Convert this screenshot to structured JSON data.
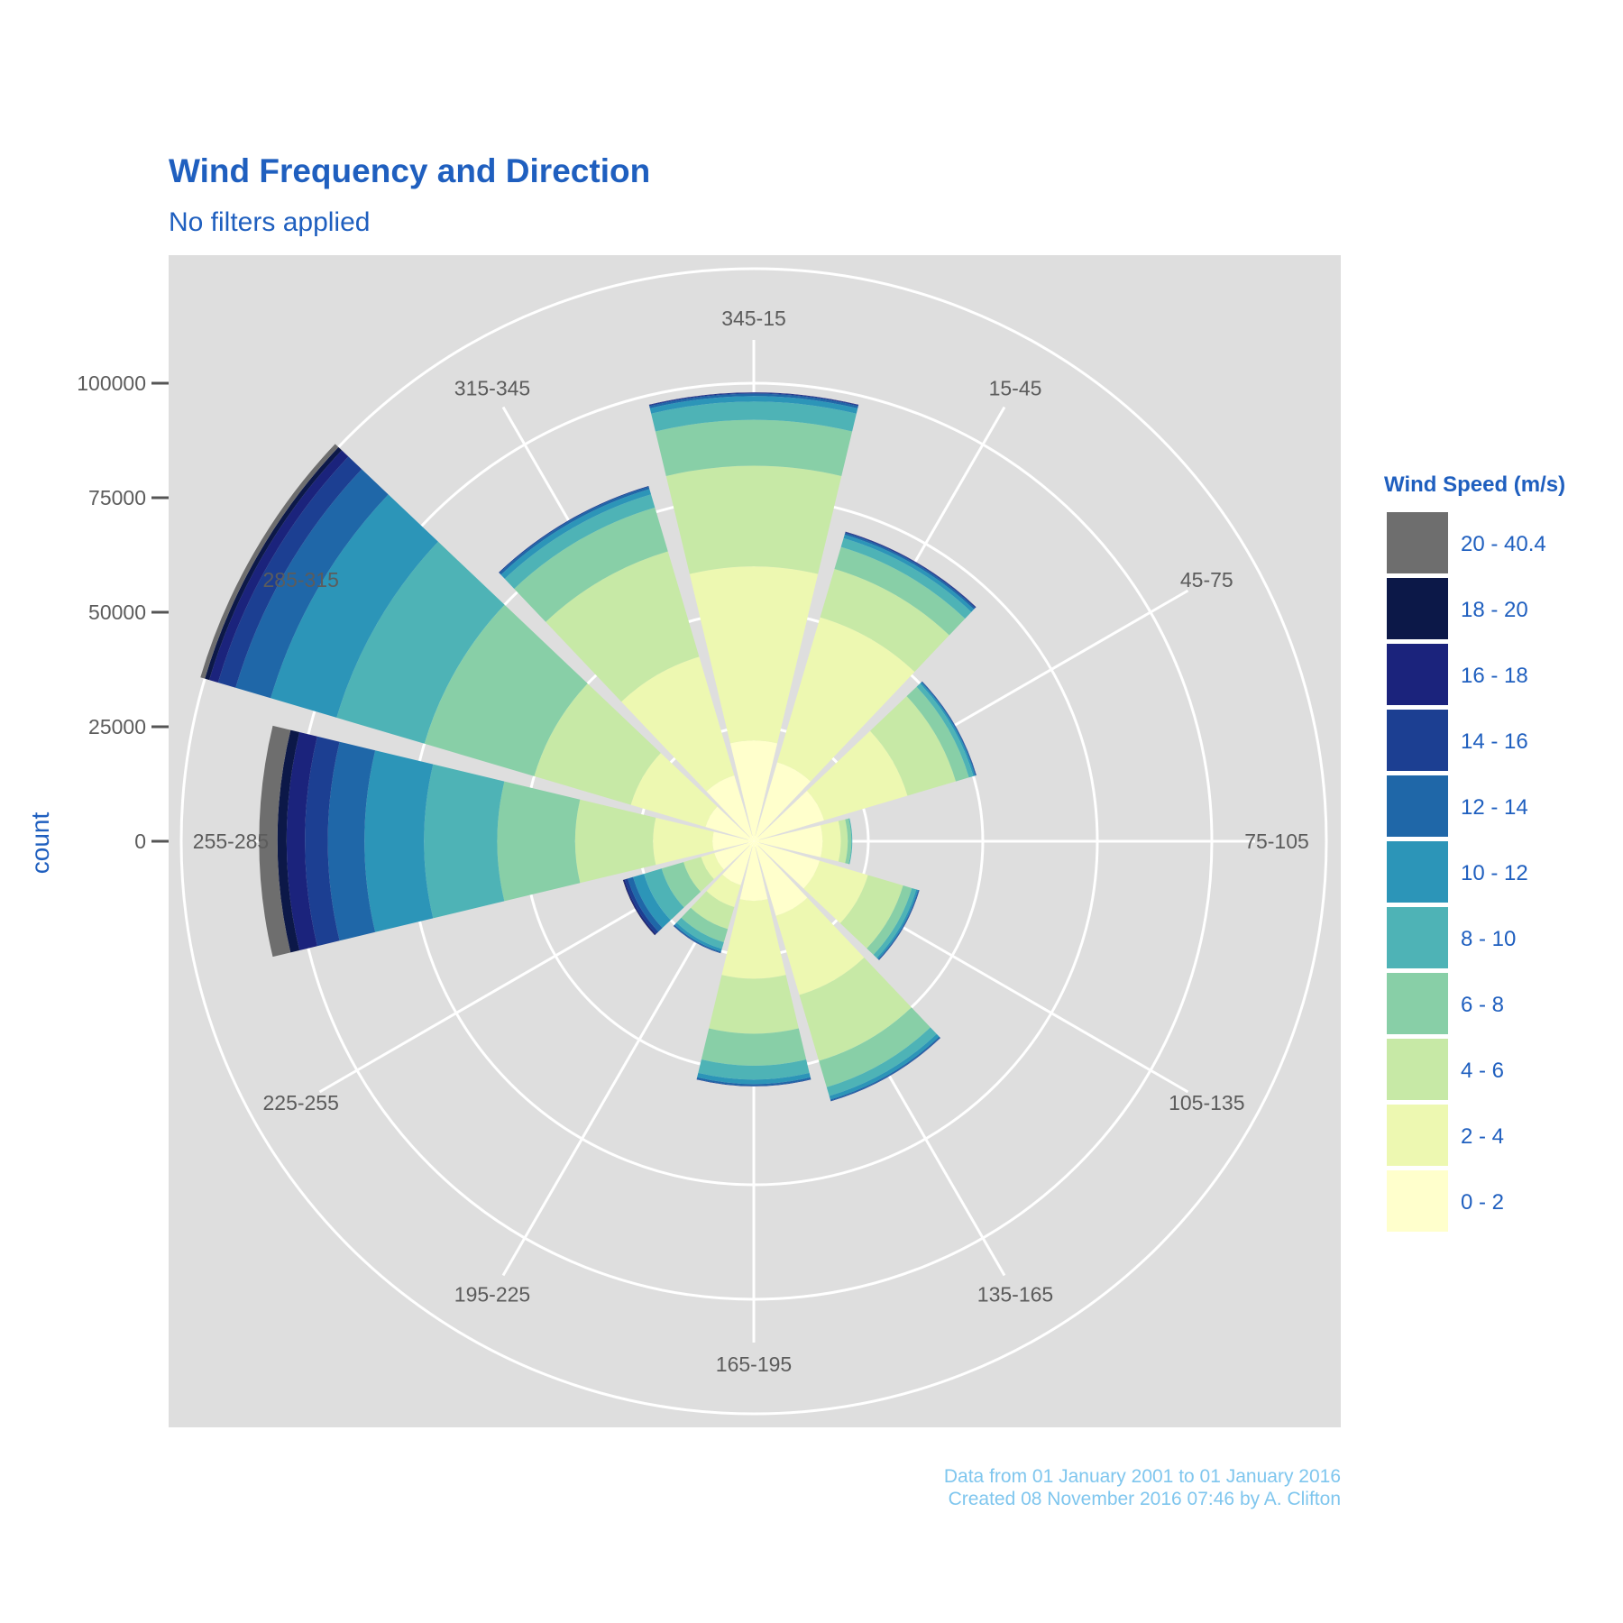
{
  "colors": {
    "title": "#1f5fbf",
    "caption": "#7fc6ee",
    "panel": "#dedede",
    "grid": "#ffffff",
    "axis_text": "#5c5c5c",
    "tick_mark": "#555555"
  },
  "chart_data": {
    "type": "bar",
    "coord": "polar",
    "stacked": true,
    "title": "Wind Frequency and Direction",
    "subtitle": "No filters applied",
    "ylabel": "count",
    "ylim": [
      0,
      120000
    ],
    "y_ticks": [
      0,
      25000,
      50000,
      75000,
      100000
    ],
    "y_tick_labels": [
      "0",
      "25000",
      "50000",
      "75000",
      "100000"
    ],
    "grid": true,
    "legend": {
      "title": "Wind Speed (m/s)",
      "placement": "right"
    },
    "categories": [
      "345-15",
      "15-45",
      "45-75",
      "75-105",
      "105-135",
      "135-165",
      "165-195",
      "195-225",
      "225-255",
      "255-285",
      "285-315",
      "315-345"
    ],
    "series": [
      {
        "name": "0 - 2",
        "color": "#ffffcc",
        "values": [
          22000,
          18000,
          16000,
          15000,
          15000,
          17000,
          13000,
          10000,
          9000,
          9000,
          11000,
          15000
        ]
      },
      {
        "name": "2 - 4",
        "color": "#edf8b1",
        "values": [
          38000,
          33000,
          19000,
          4000,
          11000,
          18000,
          17000,
          5000,
          3000,
          13000,
          17000,
          27000
        ]
      },
      {
        "name": "4 - 6",
        "color": "#c7e9a6",
        "values": [
          22000,
          11000,
          11000,
          1500,
          8000,
          15000,
          12000,
          5000,
          4000,
          17000,
          22000,
          24000
        ]
      },
      {
        "name": "6 - 8",
        "color": "#88cfa7",
        "values": [
          10000,
          5000,
          3000,
          800,
          2000,
          6000,
          7000,
          3000,
          5000,
          17000,
          25000,
          10000
        ]
      },
      {
        "name": "8 - 10",
        "color": "#4eb3b6",
        "values": [
          4000,
          2000,
          1000,
          200,
          1000,
          2000,
          3000,
          1500,
          4000,
          16000,
          20000,
          3000
        ]
      },
      {
        "name": "10 - 12",
        "color": "#2c95b8",
        "values": [
          1200,
          800,
          400,
          0,
          400,
          800,
          1000,
          600,
          2500,
          13000,
          15000,
          1200
        ]
      },
      {
        "name": "12 - 14",
        "color": "#1f67a8",
        "values": [
          500,
          400,
          200,
          0,
          200,
          300,
          400,
          300,
          1200,
          8000,
          8000,
          500
        ]
      },
      {
        "name": "14 - 16",
        "color": "#1c3f92",
        "values": [
          200,
          200,
          100,
          0,
          100,
          100,
          100,
          100,
          700,
          5000,
          4000,
          200
        ]
      },
      {
        "name": "16 - 18",
        "color": "#1b237c",
        "values": [
          100,
          100,
          0,
          0,
          0,
          0,
          0,
          0,
          300,
          4000,
          2000,
          0
        ]
      },
      {
        "name": "18 - 20",
        "color": "#0c1848",
        "values": [
          0,
          0,
          0,
          0,
          0,
          0,
          0,
          0,
          100,
          2000,
          1000,
          0
        ]
      },
      {
        "name": "20 - 40.4",
        "color": "#6e6e6e",
        "values": [
          0,
          0,
          0,
          0,
          0,
          0,
          0,
          0,
          0,
          4000,
          1000,
          0
        ]
      }
    ],
    "caption_lines": [
      "Data from 01 January 2001 to 01 January 2016",
      "Created 08 November 2016 07:46 by A. Clifton"
    ]
  }
}
